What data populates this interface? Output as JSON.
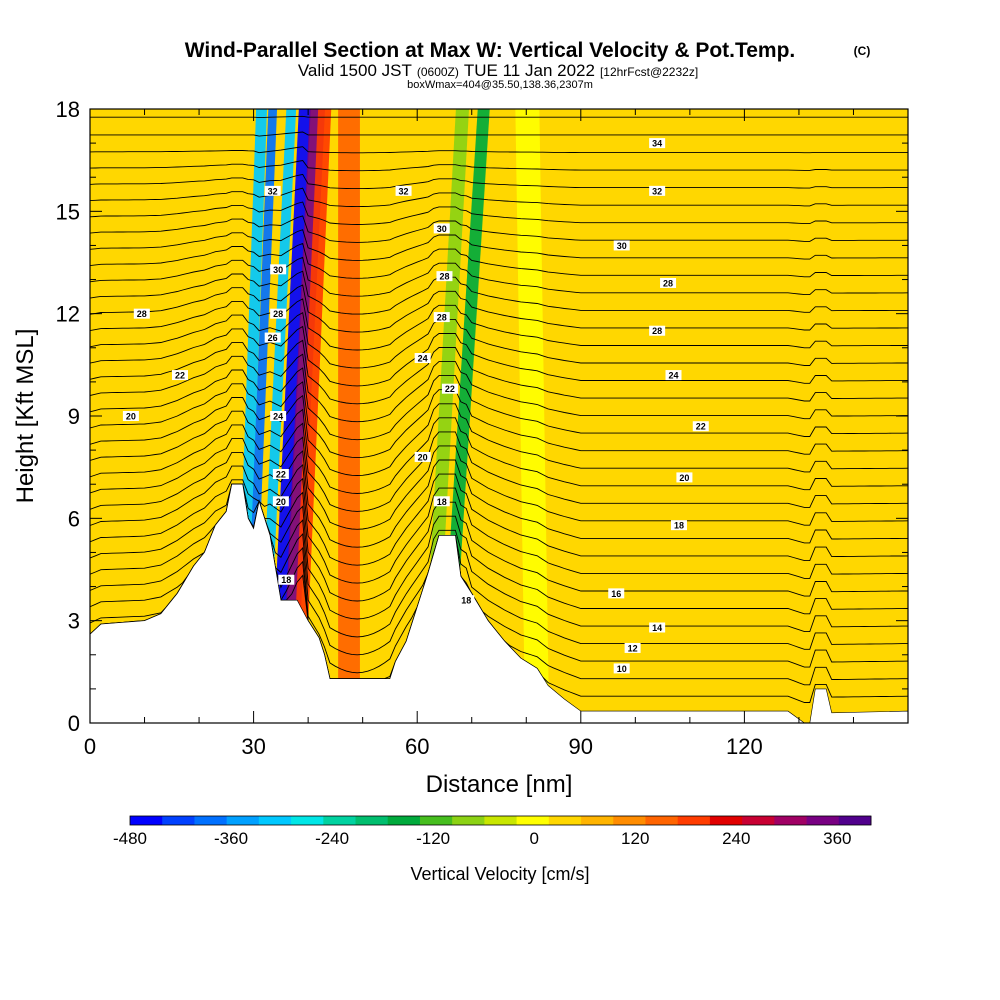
{
  "header": {
    "title": "Wind-Parallel Section at Max W: Vertical Velocity & Pot.Temp.",
    "copyright": "(C)",
    "valid_prefix": "Valid 1500 JST",
    "valid_utc": "(0600Z)",
    "valid_date": "TUE 11 Jan 2022",
    "forecast": "[12hrFcst@2232z]",
    "boxmax": "boxWmax=404@35.50,138.36,2307m"
  },
  "colors": {
    "scale": [
      "#0000ff",
      "#0040ff",
      "#0070ff",
      "#00a0ff",
      "#00c8ff",
      "#00e6e6",
      "#00d2a0",
      "#00be6e",
      "#00aa3c",
      "#46be1e",
      "#8cd214",
      "#c8e600",
      "#ffff00",
      "#ffd700",
      "#ffb400",
      "#ff8c00",
      "#ff6400",
      "#ff3c00",
      "#e10000",
      "#c80032",
      "#a00064",
      "#780082",
      "#50008c"
    ],
    "background_field": "#ffd700",
    "terrain": "#ffffff",
    "contour": "#000000"
  },
  "chart_data": {
    "type": "heatmap",
    "xlabel": "Distance [nm]",
    "ylabel": "Height [Kft MSL]",
    "xlim": [
      0,
      150
    ],
    "ylim": [
      0,
      18
    ],
    "x_ticks": [
      "0",
      "30",
      "60",
      "90",
      "120"
    ],
    "x_tick_values": [
      0,
      30,
      60,
      90,
      120
    ],
    "y_ticks": [
      "0",
      "3",
      "6",
      "9",
      "12",
      "15",
      "18"
    ],
    "y_tick_values": [
      0,
      3,
      6,
      9,
      12,
      15,
      18
    ],
    "colorbar": {
      "label": "Vertical Velocity [cm/s]",
      "min": -480,
      "max": 400,
      "ticks": [
        "-480",
        "-360",
        "-240",
        "-120",
        "0",
        "120",
        "240",
        "360"
      ],
      "tick_values": [
        -480,
        -360,
        -240,
        -120,
        0,
        120,
        240,
        360
      ]
    },
    "terrain_profile": [
      {
        "x": 0,
        "h": 2.6
      },
      {
        "x": 2,
        "h": 2.9
      },
      {
        "x": 10,
        "h": 3.0
      },
      {
        "x": 13,
        "h": 3.2
      },
      {
        "x": 16,
        "h": 3.8
      },
      {
        "x": 19,
        "h": 4.6
      },
      {
        "x": 21,
        "h": 5.0
      },
      {
        "x": 23,
        "h": 5.8
      },
      {
        "x": 25,
        "h": 6.2
      },
      {
        "x": 26,
        "h": 7.0
      },
      {
        "x": 28,
        "h": 7.0
      },
      {
        "x": 29,
        "h": 6.0
      },
      {
        "x": 30,
        "h": 5.7
      },
      {
        "x": 31,
        "h": 6.5
      },
      {
        "x": 33,
        "h": 5.5
      },
      {
        "x": 35,
        "h": 3.6
      },
      {
        "x": 38,
        "h": 3.6
      },
      {
        "x": 40,
        "h": 3.0
      },
      {
        "x": 42,
        "h": 2.5
      },
      {
        "x": 43,
        "h": 2.0
      },
      {
        "x": 44,
        "h": 1.3
      },
      {
        "x": 55,
        "h": 1.3
      },
      {
        "x": 56,
        "h": 1.8
      },
      {
        "x": 58,
        "h": 2.4
      },
      {
        "x": 60,
        "h": 3.4
      },
      {
        "x": 62,
        "h": 4.4
      },
      {
        "x": 64,
        "h": 5.5
      },
      {
        "x": 67,
        "h": 5.5
      },
      {
        "x": 68,
        "h": 4.3
      },
      {
        "x": 70,
        "h": 3.8
      },
      {
        "x": 73,
        "h": 3.0
      },
      {
        "x": 76,
        "h": 2.4
      },
      {
        "x": 79,
        "h": 1.9
      },
      {
        "x": 82,
        "h": 1.6
      },
      {
        "x": 84,
        "h": 1.1
      },
      {
        "x": 87,
        "h": 0.7
      },
      {
        "x": 90,
        "h": 0.35
      },
      {
        "x": 128,
        "h": 0.35
      },
      {
        "x": 131,
        "h": 0.0
      },
      {
        "x": 132,
        "h": 0.0
      },
      {
        "x": 133,
        "h": 1.0
      },
      {
        "x": 135,
        "h": 1.0
      },
      {
        "x": 136,
        "h": 0.3
      },
      {
        "x": 150,
        "h": 0.35
      }
    ],
    "velocity_bands": [
      {
        "x": 27.5,
        "x_slope": 0.22,
        "width": 1.0,
        "value": -300
      },
      {
        "x": 29.0,
        "x_slope": 0.25,
        "width": 0.8,
        "value": -400
      },
      {
        "x": 31.5,
        "x_slope": 0.3,
        "width": 0.9,
        "value": -320
      },
      {
        "x": 34.0,
        "x_slope": 0.3,
        "width": 1.1,
        "value": -480
      },
      {
        "x": 36.3,
        "x_slope": 0.3,
        "width": 1.4,
        "value": 360
      },
      {
        "x": 38.0,
        "x_slope": 0.28,
        "width": 1.2,
        "value": 180
      },
      {
        "x": 65.0,
        "x_slope": 0.4,
        "width": 1.1,
        "value": -160
      },
      {
        "x": 62.0,
        "x_slope": 0.35,
        "width": 1.2,
        "value": -60
      },
      {
        "x": 82.0,
        "x_slope": -0.1,
        "width": 2.2,
        "value": -20
      },
      {
        "x": 47.5,
        "x_slope": 0.0,
        "width": 2.0,
        "value": 150
      }
    ],
    "contour_labels": [
      {
        "text": "34",
        "x": 104,
        "y": 17.0
      },
      {
        "text": "32",
        "x": 33.5,
        "y": 15.6
      },
      {
        "text": "32",
        "x": 57.5,
        "y": 15.6
      },
      {
        "text": "32",
        "x": 104,
        "y": 15.6
      },
      {
        "text": "30",
        "x": 64.5,
        "y": 14.5
      },
      {
        "text": "30",
        "x": 97.5,
        "y": 14.0
      },
      {
        "text": "30",
        "x": 34.5,
        "y": 13.3
      },
      {
        "text": "28",
        "x": 65.0,
        "y": 13.1
      },
      {
        "text": "28",
        "x": 106,
        "y": 12.9
      },
      {
        "text": "28",
        "x": 9.5,
        "y": 12.0
      },
      {
        "text": "28",
        "x": 34.5,
        "y": 12.0
      },
      {
        "text": "28",
        "x": 64.5,
        "y": 11.9
      },
      {
        "text": "28",
        "x": 104,
        "y": 11.5
      },
      {
        "text": "26",
        "x": 33.5,
        "y": 11.3
      },
      {
        "text": "24",
        "x": 61.0,
        "y": 10.7
      },
      {
        "text": "22",
        "x": 16.5,
        "y": 10.2
      },
      {
        "text": "24",
        "x": 107,
        "y": 10.2
      },
      {
        "text": "22",
        "x": 66.0,
        "y": 9.8
      },
      {
        "text": "24",
        "x": 34.5,
        "y": 9.0
      },
      {
        "text": "20",
        "x": 7.5,
        "y": 9.0
      },
      {
        "text": "22",
        "x": 112,
        "y": 8.7
      },
      {
        "text": "20",
        "x": 61.0,
        "y": 7.8
      },
      {
        "text": "22",
        "x": 35.0,
        "y": 7.3
      },
      {
        "text": "20",
        "x": 109,
        "y": 7.2
      },
      {
        "text": "20",
        "x": 35.0,
        "y": 6.5
      },
      {
        "text": "18",
        "x": 64.5,
        "y": 6.5
      },
      {
        "text": "18",
        "x": 108,
        "y": 5.8
      },
      {
        "text": "18",
        "x": 36.0,
        "y": 4.2
      },
      {
        "text": "18",
        "x": 69.0,
        "y": 3.6
      },
      {
        "text": "16",
        "x": 96.5,
        "y": 3.8
      },
      {
        "text": "14",
        "x": 104,
        "y": 2.8
      },
      {
        "text": "12",
        "x": 99.5,
        "y": 2.2
      },
      {
        "text": "10",
        "x": 97.5,
        "y": 1.6
      }
    ]
  }
}
